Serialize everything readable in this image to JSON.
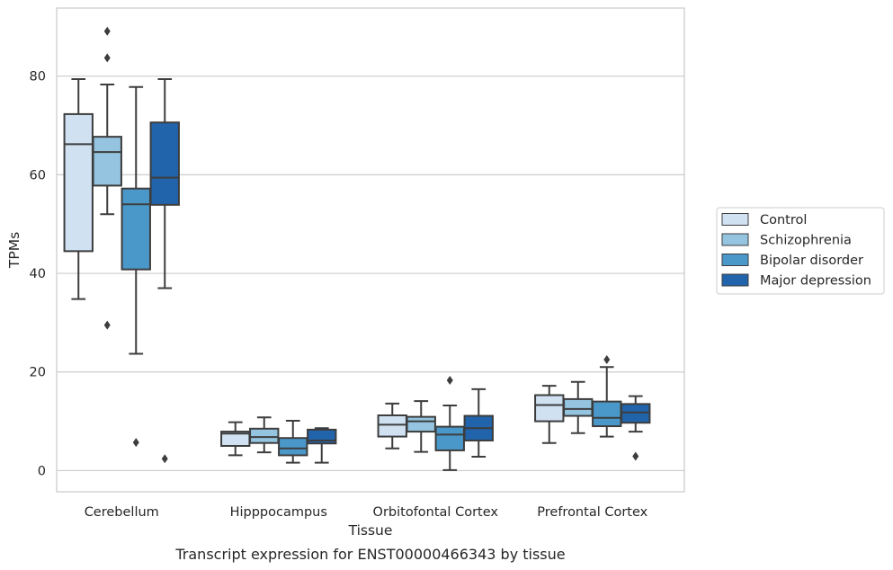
{
  "chart_data": {
    "type": "box",
    "xlabel": "Tissue",
    "ylabel": "TPMs",
    "caption": "Transcript expression for ENST00000466343 by tissue",
    "ylim": [
      -4.3,
      93.8
    ],
    "yticks": [
      0,
      20,
      40,
      60,
      80
    ],
    "grid": "horizontal",
    "legend_placement": "right",
    "categories": [
      "Cerebellum",
      "Hipppocampus",
      "Orbitofontal Cortex",
      "Prefrontal Cortex"
    ],
    "series": [
      {
        "name": "Control",
        "color": "#d0e1f2",
        "boxes": [
          {
            "whislo": 34.8,
            "q1": 44.5,
            "med": 66.2,
            "q3": 72.3,
            "whishi": 79.4,
            "fliers": []
          },
          {
            "whislo": 3.1,
            "q1": 5.0,
            "med": 7.5,
            "q3": 7.9,
            "whishi": 9.8,
            "fliers": []
          },
          {
            "whislo": 4.5,
            "q1": 6.9,
            "med": 9.3,
            "q3": 11.2,
            "whishi": 13.6,
            "fliers": []
          },
          {
            "whislo": 5.6,
            "q1": 10.0,
            "med": 13.3,
            "q3": 15.3,
            "whishi": 17.2,
            "fliers": []
          }
        ]
      },
      {
        "name": "Schizophrenia",
        "color": "#94c4df",
        "boxes": [
          {
            "whislo": 52.0,
            "q1": 57.8,
            "med": 64.6,
            "q3": 67.7,
            "whishi": 78.3,
            "fliers": [
              89.1,
              83.7,
              29.5
            ]
          },
          {
            "whislo": 3.7,
            "q1": 5.6,
            "med": 6.8,
            "q3": 8.5,
            "whishi": 10.8,
            "fliers": []
          },
          {
            "whislo": 3.8,
            "q1": 7.9,
            "med": 10.0,
            "q3": 10.9,
            "whishi": 14.1,
            "fliers": []
          },
          {
            "whislo": 7.6,
            "q1": 11.1,
            "med": 12.5,
            "q3": 14.5,
            "whishi": 18.0,
            "fliers": []
          }
        ]
      },
      {
        "name": "Bipolar disorder",
        "color": "#4a98c9",
        "boxes": [
          {
            "whislo": 23.7,
            "q1": 40.8,
            "med": 54.0,
            "q3": 57.2,
            "whishi": 77.8,
            "fliers": [
              5.7
            ]
          },
          {
            "whislo": 1.6,
            "q1": 3.1,
            "med": 4.5,
            "q3": 6.6,
            "whishi": 10.1,
            "fliers": []
          },
          {
            "whislo": 0.1,
            "q1": 4.1,
            "med": 7.3,
            "q3": 8.9,
            "whishi": 13.2,
            "fliers": [
              18.3
            ]
          },
          {
            "whislo": 6.9,
            "q1": 9.0,
            "med": 10.7,
            "q3": 14.0,
            "whishi": 21.0,
            "fliers": [
              22.5
            ]
          }
        ]
      },
      {
        "name": "Major depression",
        "color": "#2164ab",
        "boxes": [
          {
            "whislo": 37.0,
            "q1": 53.9,
            "med": 59.4,
            "q3": 70.6,
            "whishi": 79.4,
            "fliers": [
              2.4
            ]
          },
          {
            "whislo": 1.6,
            "q1": 5.5,
            "med": 6.1,
            "q3": 8.3,
            "whishi": 8.6,
            "fliers": []
          },
          {
            "whislo": 2.8,
            "q1": 6.1,
            "med": 8.6,
            "q3": 11.1,
            "whishi": 16.5,
            "fliers": []
          },
          {
            "whislo": 7.9,
            "q1": 9.7,
            "med": 11.8,
            "q3": 13.5,
            "whishi": 15.1,
            "fliers": [
              2.9
            ]
          }
        ]
      }
    ]
  }
}
